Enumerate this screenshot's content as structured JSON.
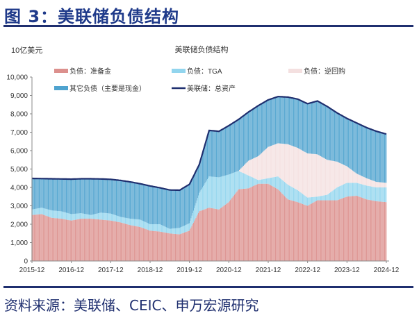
{
  "header": {
    "title": "图 3：美联储负债结构"
  },
  "footer": {
    "source": "资料来源：美联储、CEIC、申万宏源研究"
  },
  "chart_data": {
    "type": "bar",
    "stacked": true,
    "title": "美联储负债结构",
    "ylabel": "10亿美元",
    "xlabel": "",
    "ylim": [
      0,
      10000
    ],
    "yticks": [
      0,
      1000,
      2000,
      3000,
      4000,
      5000,
      6000,
      7000,
      8000,
      9000,
      10000
    ],
    "ytick_labels": [
      "0",
      "1,000",
      "2,000",
      "3,000",
      "4,000",
      "5,000",
      "6,000",
      "7,000",
      "8,000",
      "9,000",
      "10,000"
    ],
    "xtick_labels": [
      "2015-12",
      "2016-12",
      "2017-12",
      "2018-12",
      "2019-12",
      "2020-12",
      "2021-12",
      "2022-12",
      "2023-12",
      "2024-12"
    ],
    "legend_placement": "top",
    "grid": false,
    "x": [
      "2015-12",
      "2016-03",
      "2016-06",
      "2016-09",
      "2016-12",
      "2017-03",
      "2017-06",
      "2017-09",
      "2017-12",
      "2018-03",
      "2018-06",
      "2018-09",
      "2018-12",
      "2019-03",
      "2019-06",
      "2019-09",
      "2019-12",
      "2020-03",
      "2020-06",
      "2020-09",
      "2020-12",
      "2021-03",
      "2021-06",
      "2021-09",
      "2021-12",
      "2022-03",
      "2022-06",
      "2022-09",
      "2022-12",
      "2023-03",
      "2023-06",
      "2023-09",
      "2023-12",
      "2024-03",
      "2024-06",
      "2024-09",
      "2024-12"
    ],
    "series": [
      {
        "name": "负债：准备金",
        "color": "#dc908d",
        "values": [
          2500,
          2550,
          2350,
          2300,
          2200,
          2300,
          2300,
          2250,
          2200,
          2100,
          1950,
          1850,
          1650,
          1600,
          1500,
          1450,
          1650,
          2700,
          2900,
          2800,
          3200,
          3900,
          3950,
          4200,
          4200,
          3900,
          3350,
          3200,
          3000,
          3300,
          3300,
          3300,
          3500,
          3550,
          3350,
          3250,
          3200
        ]
      },
      {
        "name": "负债：TGA",
        "color": "#92d5ee",
        "values": [
          300,
          350,
          400,
          400,
          350,
          300,
          200,
          380,
          380,
          300,
          350,
          400,
          350,
          400,
          250,
          350,
          400,
          1000,
          1700,
          1750,
          1500,
          1000,
          700,
          200,
          300,
          700,
          800,
          650,
          450,
          200,
          300,
          700,
          750,
          700,
          750,
          750,
          800
        ]
      },
      {
        "name": "负债：逆回购",
        "color": "#f4e0e0",
        "values": [
          0,
          0,
          0,
          0,
          0,
          0,
          0,
          0,
          0,
          0,
          0,
          0,
          0,
          0,
          0,
          0,
          0,
          0,
          0,
          0,
          0,
          0,
          800,
          1300,
          1700,
          1800,
          2200,
          2300,
          2400,
          2300,
          1900,
          1400,
          900,
          500,
          400,
          300,
          250
        ]
      },
      {
        "name": "其它负债（主要是现金）",
        "color": "#4fa3cf",
        "values": [
          1690,
          1580,
          1720,
          1760,
          1900,
          1870,
          1970,
          1830,
          1860,
          1980,
          2000,
          1950,
          2080,
          1980,
          2110,
          2050,
          2120,
          1550,
          2500,
          2500,
          2660,
          2800,
          2650,
          2750,
          2560,
          2540,
          2560,
          2650,
          2700,
          2900,
          2900,
          2650,
          2600,
          2750,
          2750,
          2750,
          2650
        ]
      }
    ],
    "line": {
      "name": "美联储：总资产",
      "color": "#1f2f6f",
      "values": [
        4490,
        4480,
        4470,
        4460,
        4450,
        4470,
        4470,
        4460,
        4440,
        4380,
        4300,
        4200,
        4080,
        3980,
        3860,
        3850,
        4170,
        5250,
        7100,
        7050,
        7360,
        7700,
        8100,
        8450,
        8760,
        8940,
        8910,
        8800,
        8550,
        8700,
        8400,
        8050,
        7750,
        7500,
        7250,
        7050,
        6900
      ]
    }
  }
}
